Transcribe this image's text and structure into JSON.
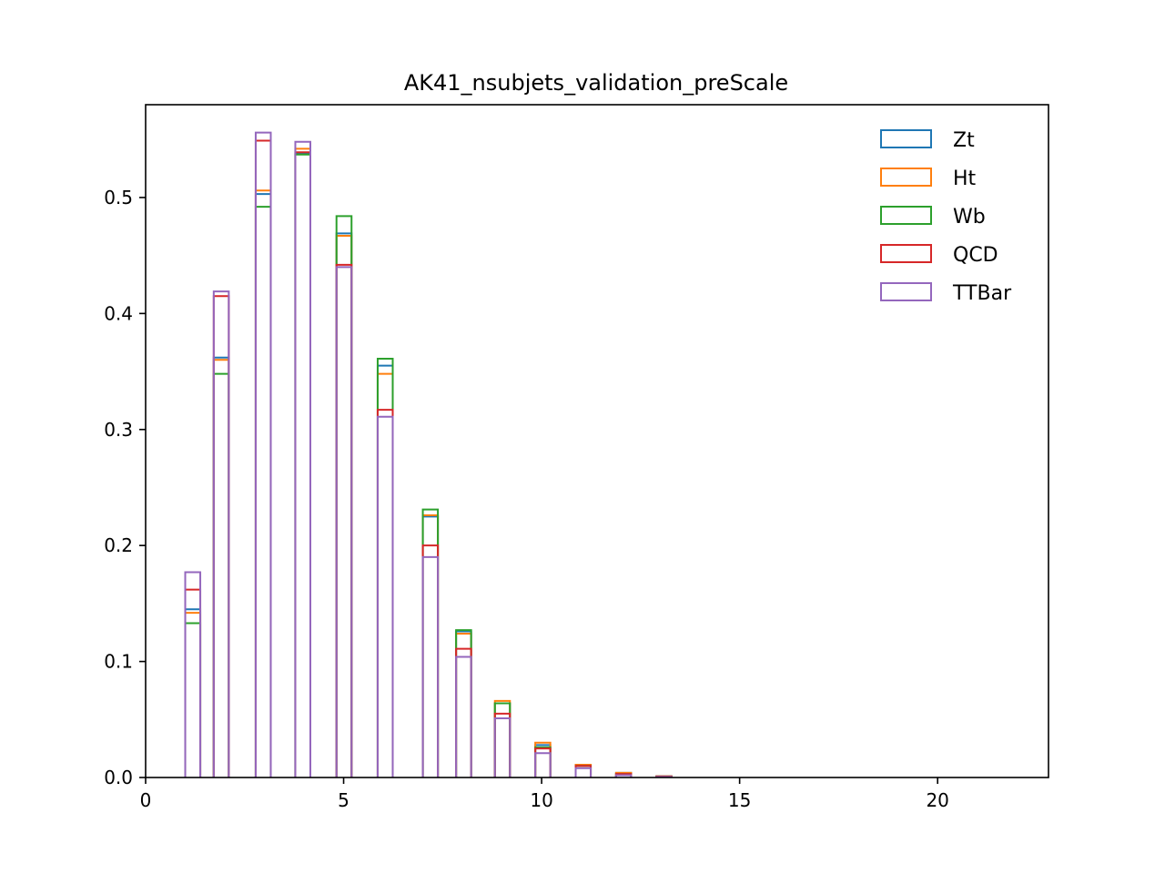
{
  "chart_data": {
    "type": "bar",
    "style": "step histogram",
    "title": "AK41_nsubjets_validation_preScale",
    "xlabel": "",
    "ylabel": "",
    "xlim": [
      0,
      22.8
    ],
    "ylim": [
      0,
      0.58
    ],
    "xticks": [
      0,
      5,
      10,
      15,
      20
    ],
    "yticks": [
      0.0,
      0.1,
      0.2,
      0.3,
      0.4,
      0.5
    ],
    "grid": false,
    "legend_position": "top-right",
    "bin_starts": [
      1.0,
      1.72,
      2.78,
      3.78,
      4.82,
      5.86,
      7.0,
      7.84,
      8.82,
      9.84,
      10.86,
      11.88,
      12.9
    ],
    "bin_width": 0.38,
    "series": [
      {
        "name": "Zt",
        "color": "#1f77b4",
        "values": [
          0.145,
          0.362,
          0.503,
          0.538,
          0.469,
          0.355,
          0.225,
          0.126,
          0.064,
          0.028,
          0.011,
          0.004,
          0.001
        ]
      },
      {
        "name": "Ht",
        "color": "#ff7f0e",
        "values": [
          0.142,
          0.36,
          0.506,
          0.542,
          0.467,
          0.348,
          0.226,
          0.124,
          0.066,
          0.03,
          0.011,
          0.004,
          0.001
        ]
      },
      {
        "name": "Wb",
        "color": "#2ca02c",
        "values": [
          0.133,
          0.348,
          0.492,
          0.537,
          0.484,
          0.361,
          0.231,
          0.127,
          0.064,
          0.026,
          0.01,
          0.003,
          0.001
        ]
      },
      {
        "name": "QCD",
        "color": "#d62728",
        "values": [
          0.162,
          0.415,
          0.549,
          0.539,
          0.442,
          0.317,
          0.2,
          0.111,
          0.055,
          0.025,
          0.01,
          0.003,
          0.001
        ]
      },
      {
        "name": "TTBar",
        "color": "#9467bd",
        "values": [
          0.177,
          0.419,
          0.556,
          0.548,
          0.44,
          0.311,
          0.19,
          0.104,
          0.051,
          0.021,
          0.008,
          0.002,
          0.0005
        ]
      }
    ]
  }
}
